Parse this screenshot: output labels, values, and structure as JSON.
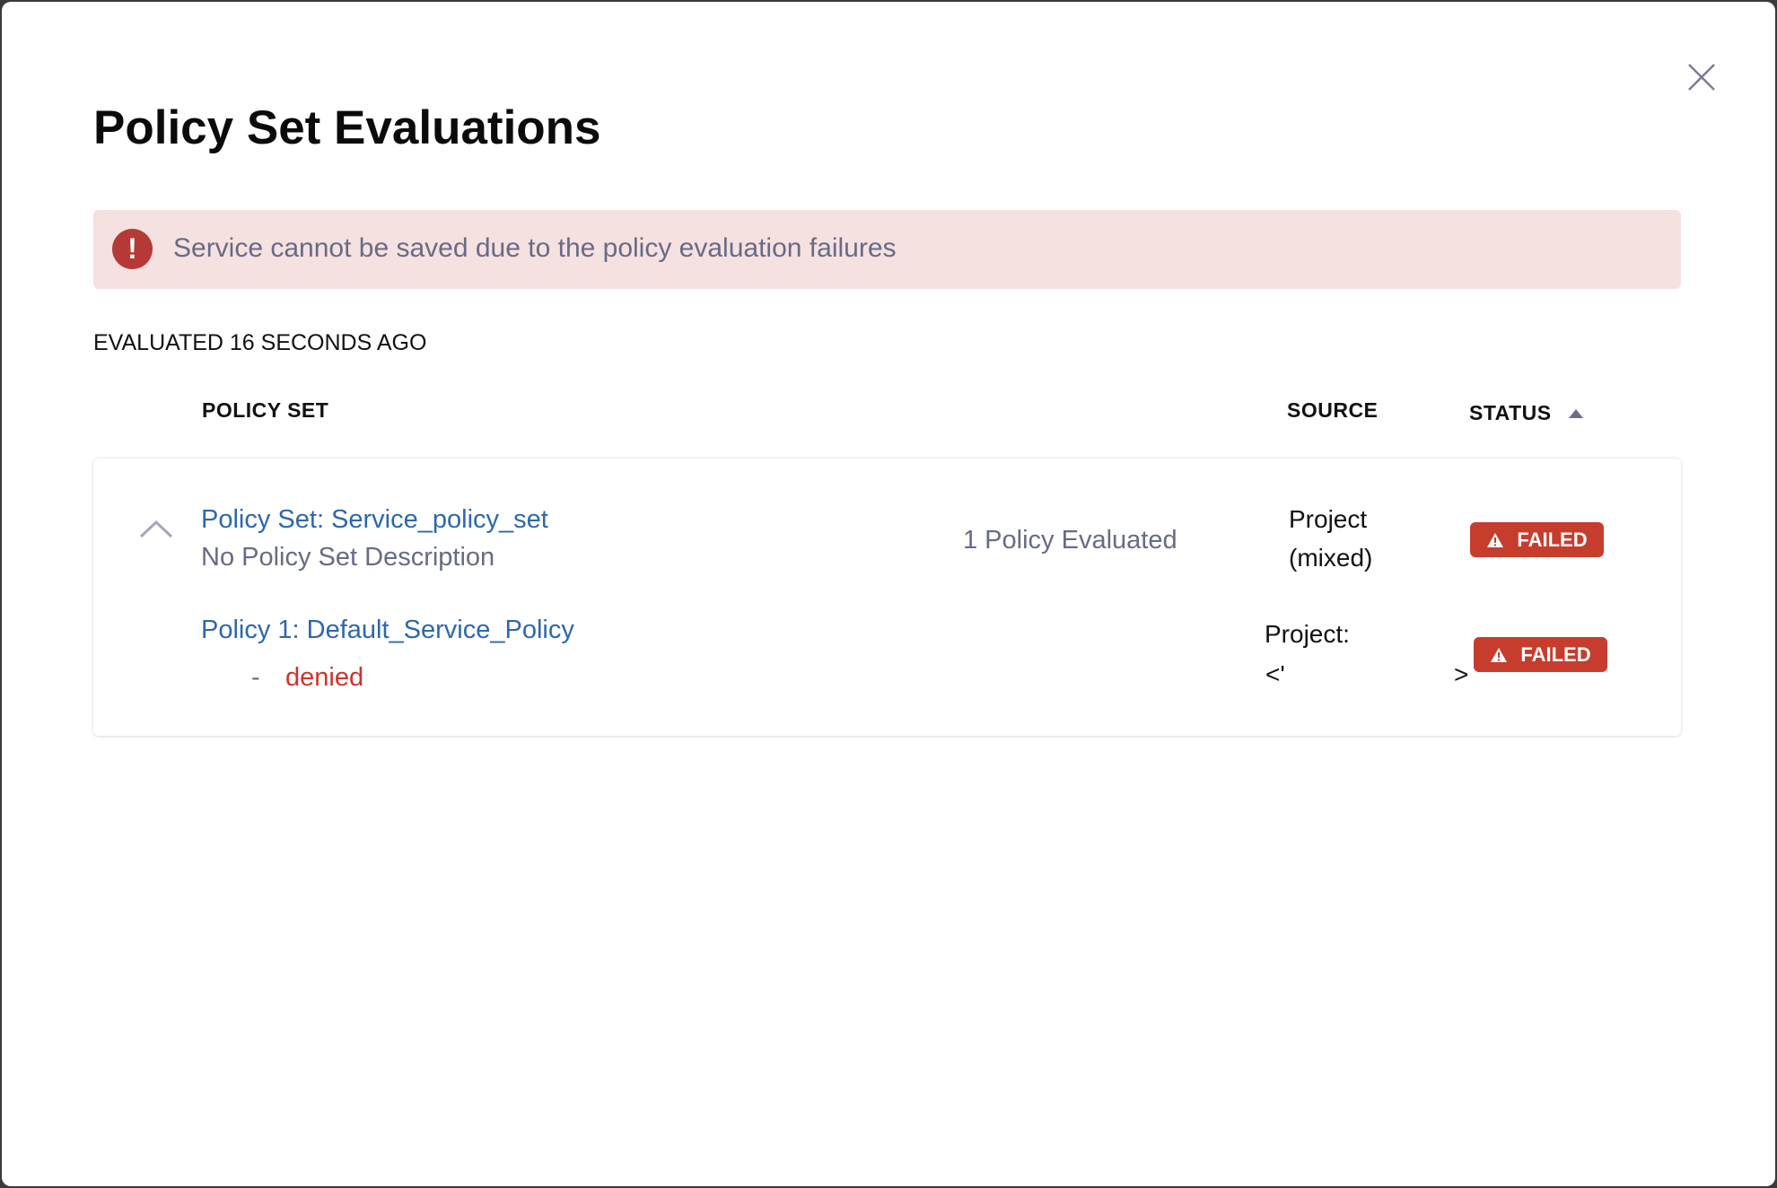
{
  "dialog": {
    "title": "Policy Set Evaluations",
    "close_icon": "close-icon"
  },
  "banner": {
    "icon": "error-exclamation-icon",
    "icon_glyph": "!",
    "message": "Service cannot be saved due to the policy evaluation failures",
    "color": "#b53a37",
    "background": "#f6e1e1"
  },
  "evaluated": "EVALUATED 16 SECONDS AGO",
  "table": {
    "headers": {
      "policy_set": "POLICY SET",
      "source": "SOURCE",
      "status": "STATUS"
    },
    "sort": {
      "column": "status",
      "direction": "ascending",
      "icon": "sort-up-icon"
    },
    "rows": [
      {
        "name": "Policy Set: Service_policy_set",
        "description": "No Policy Set Description",
        "evaluated_count": "1 Policy Evaluated",
        "source_line1": "Project",
        "source_line2": "(mixed)",
        "status": "FAILED",
        "expanded": true,
        "policies": [
          {
            "name": "Policy 1: Default_Service_Policy",
            "bullet": "-",
            "result": "denied",
            "source_line1": "Project:",
            "source_open": "<'",
            "source_close": ">",
            "status": "FAILED"
          }
        ]
      }
    ]
  },
  "colors": {
    "failed": "#c63d2e",
    "link": "#2d68ad",
    "denied": "#d0322a"
  }
}
